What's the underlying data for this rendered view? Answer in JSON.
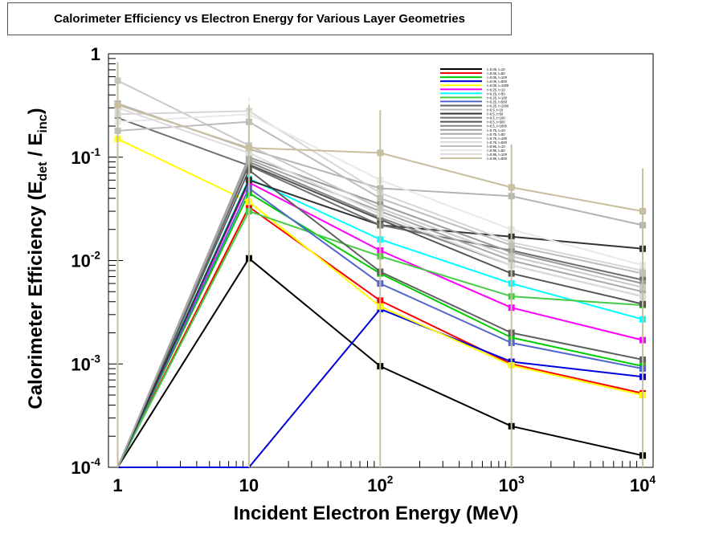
{
  "chart_data": {
    "type": "line",
    "title": "Calorimeter Efficiency vs Electron Energy for Various Layer Geometries",
    "xlabel": "Incident Electron Energy (MeV)",
    "ylabel_parts": [
      "Calorimeter Efficiency (E",
      "det",
      " / E",
      "inc",
      ")"
    ],
    "x_scale": "log",
    "y_scale": "log",
    "xlim": [
      0.85,
      12000
    ],
    "ylim": [
      0.0001,
      1
    ],
    "x_ticks": [
      {
        "value": 1,
        "base": "1",
        "exp": ""
      },
      {
        "value": 10,
        "base": "10",
        "exp": ""
      },
      {
        "value": 100,
        "base": "10",
        "exp": "2"
      },
      {
        "value": 1000,
        "base": "10",
        "exp": "3"
      },
      {
        "value": 10000,
        "base": "10",
        "exp": "4"
      }
    ],
    "y_ticks": [
      {
        "value": 1,
        "base": "1",
        "exp": ""
      },
      {
        "value": 0.1,
        "base": "10",
        "exp": "-1"
      },
      {
        "value": 0.01,
        "base": "10",
        "exp": "-2"
      },
      {
        "value": 0.001,
        "base": "10",
        "exp": "-3"
      },
      {
        "value": 0.0001,
        "base": "10",
        "exp": "-4"
      }
    ],
    "legend_position": "top-right",
    "x": [
      1,
      10,
      100,
      1000,
      10000
    ],
    "series": [
      {
        "name": "r=0.05, t=10",
        "color": "#000000",
        "values": [
          0.0001,
          0.0105,
          0.00095,
          0.00025,
          0.00013
        ]
      },
      {
        "name": "r=0.05, t=50",
        "color": "#ff0000",
        "values": [
          0.0001,
          0.033,
          0.0041,
          0.001,
          0.00052
        ]
      },
      {
        "name": "r=0.05, t=100",
        "color": "#00cc00",
        "values": [
          0.0001,
          0.045,
          0.0075,
          0.0018,
          0.00095
        ]
      },
      {
        "name": "r=0.05, t=500",
        "color": "#0000dd",
        "values": [
          0.0001,
          0.0001,
          0.0034,
          0.00105,
          0.00075
        ]
      },
      {
        "name": "r=0.05, t=1000",
        "color": "#ffff00",
        "values": [
          0.15,
          0.037,
          0.0036,
          0.00097,
          0.0005
        ]
      },
      {
        "name": "r=0.25, t=10",
        "color": "#ff00ff",
        "values": [
          0.0001,
          0.057,
          0.0125,
          0.0035,
          0.0017
        ]
      },
      {
        "name": "r=0.25, t=50",
        "color": "#00ffff",
        "values": [
          0.0001,
          0.062,
          0.016,
          0.006,
          0.0027
        ]
      },
      {
        "name": "r=0.25, t=100",
        "color": "#44cc44",
        "values": [
          0.0001,
          0.03,
          0.011,
          0.0045,
          0.0037
        ]
      },
      {
        "name": "r=0.25, t=500",
        "color": "#5566cc",
        "values": [
          0.0001,
          0.05,
          0.006,
          0.0016,
          0.0009
        ]
      },
      {
        "name": "r=0.25, t=1000",
        "color": "#606060",
        "values": [
          0.0001,
          0.075,
          0.0078,
          0.002,
          0.0011
        ]
      },
      {
        "name": "r=0.5, t=10",
        "color": "#b4b4b4",
        "values": [
          0.33,
          0.12,
          0.05,
          0.042,
          0.022
        ]
      },
      {
        "name": "r=0.5, t=50",
        "color": "#333333",
        "values": [
          0.0001,
          0.06,
          0.022,
          0.017,
          0.013
        ]
      },
      {
        "name": "r=0.5, t=100",
        "color": "#707070",
        "values": [
          0.24,
          0.083,
          0.022,
          0.0125,
          0.0065
        ]
      },
      {
        "name": "r=0.5, t=500",
        "color": "#555555",
        "values": [
          0.0001,
          0.085,
          0.025,
          0.0075,
          0.0038
        ]
      },
      {
        "name": "r=0.5, t=1000",
        "color": "#878787",
        "values": [
          0.0001,
          0.09,
          0.026,
          0.009,
          0.0045
        ]
      },
      {
        "name": "r=0.75, t=10",
        "color": "#9a9a9a",
        "values": [
          0.0001,
          0.1,
          0.035,
          0.012,
          0.006
        ]
      },
      {
        "name": "r=0.75, t=50",
        "color": "#a8a8a8",
        "values": [
          0.0001,
          0.095,
          0.03,
          0.01,
          0.005
        ]
      },
      {
        "name": "r=0.75, t=100",
        "color": "#c8c8c8",
        "values": [
          0.55,
          0.13,
          0.032,
          0.011,
          0.0055
        ]
      },
      {
        "name": "r=0.75, t=500",
        "color": "#d6d6d6",
        "values": [
          0.26,
          0.28,
          0.045,
          0.015,
          0.008
        ]
      },
      {
        "name": "r=0.95, t=10",
        "color": "#bdbdbd",
        "values": [
          0.18,
          0.22,
          0.04,
          0.014,
          0.0075
        ]
      },
      {
        "name": "r=0.95, t=50",
        "color": "#e8e8e8",
        "values": [
          0.22,
          0.26,
          0.06,
          0.02,
          0.009
        ]
      },
      {
        "name": "r=0.95, t=100",
        "color": "#dcdcdc",
        "values": [
          0.3,
          0.11,
          0.028,
          0.009,
          0.0045
        ]
      },
      {
        "name": "r=0.95, t=500",
        "color": "#c8bea0",
        "values": [
          0.32,
          0.123,
          0.11,
          0.051,
          0.03
        ]
      }
    ]
  }
}
